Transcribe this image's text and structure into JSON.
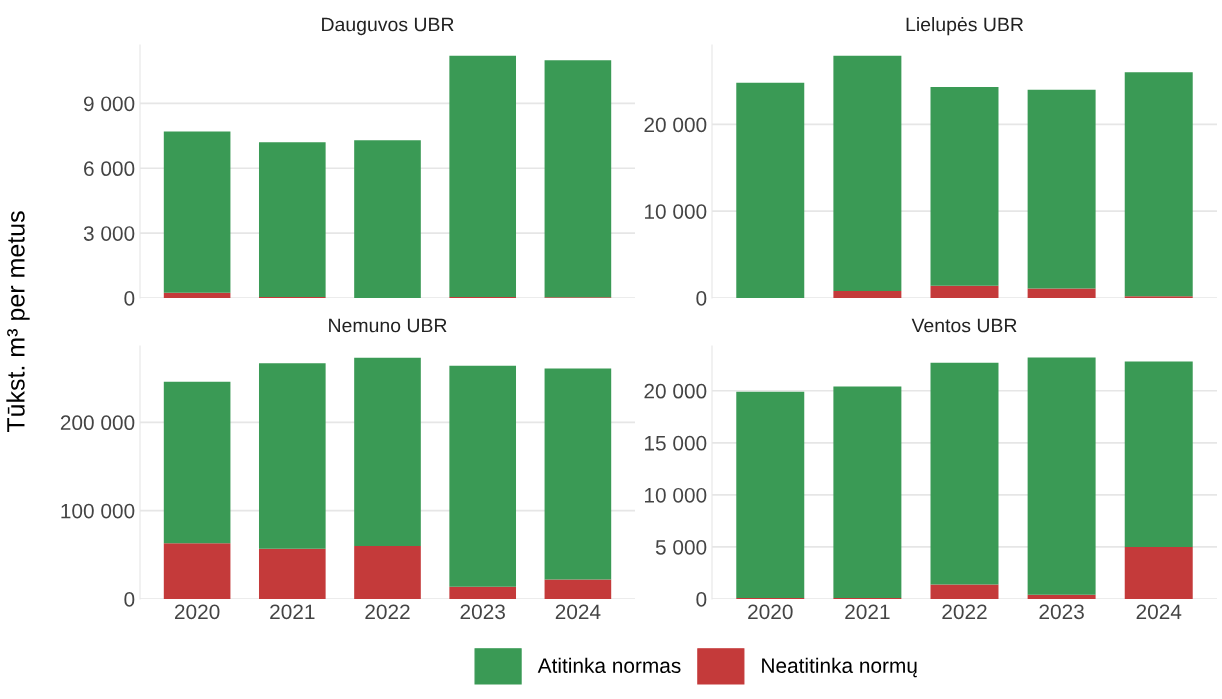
{
  "chart_data": [
    {
      "type": "bar",
      "title": "Dauguvos UBR",
      "ylabel": "Tūkst. m³ per metus",
      "stacked": true,
      "categories": [
        "2020",
        "2021",
        "2022",
        "2023",
        "2024"
      ],
      "series": [
        {
          "name": "Neatitinka normų",
          "color": "#c43a3a",
          "values": [
            240,
            50,
            0,
            50,
            40
          ]
        },
        {
          "name": "Atitinka normas",
          "color": "#3a9a55",
          "values": [
            7460,
            7150,
            7300,
            11150,
            10960
          ]
        }
      ],
      "ylim": [
        0,
        11700
      ],
      "yticks": [
        0,
        {
          "value": 3000,
          "label": "3 000"
        },
        {
          "value": 6000,
          "label": "6 000"
        },
        {
          "value": 9000,
          "label": "9 000"
        }
      ],
      "grid": "y",
      "tick_labels": "y",
      "legend": "bottom"
    },
    {
      "type": "bar",
      "title": "Lielupės UBR",
      "stacked": true,
      "categories": [
        "2020",
        "2021",
        "2022",
        "2023",
        "2024"
      ],
      "series": [
        {
          "name": "Neatitinka normų",
          "color": "#c43a3a",
          "values": [
            0,
            800,
            1400,
            1100,
            200
          ]
        },
        {
          "name": "Atitinka normas",
          "color": "#3a9a55",
          "values": [
            24800,
            27100,
            22900,
            22900,
            25800
          ]
        }
      ],
      "ylim": [
        0,
        29150
      ],
      "yticks": [
        0,
        {
          "value": 10000,
          "label": "10 000"
        },
        {
          "value": 20000,
          "label": "20 000"
        }
      ],
      "grid": "y",
      "tick_labels": "y",
      "legend": "bottom"
    },
    {
      "type": "bar",
      "title": "Nemuno UBR",
      "stacked": true,
      "categories": [
        "2020",
        "2021",
        "2022",
        "2023",
        "2024"
      ],
      "series": [
        {
          "name": "Neatitinka normų",
          "color": "#c43a3a",
          "values": [
            63000,
            57000,
            60000,
            14000,
            22000
          ]
        },
        {
          "name": "Atitinka normas",
          "color": "#3a9a55",
          "values": [
            183000,
            210000,
            213000,
            250000,
            239000
          ]
        }
      ],
      "ylim": [
        0,
        286400
      ],
      "yticks": [
        0,
        {
          "value": 100000,
          "label": "100 000"
        },
        {
          "value": 200000,
          "label": "200 000"
        }
      ],
      "grid": "y",
      "legend": "bottom"
    },
    {
      "type": "bar",
      "title": "Ventos UBR",
      "stacked": true,
      "categories": [
        "2020",
        "2021",
        "2022",
        "2023",
        "2024"
      ],
      "series": [
        {
          "name": "Neatitinka normų",
          "color": "#c43a3a",
          "values": [
            100,
            100,
            1400,
            400,
            5000
          ]
        },
        {
          "name": "Atitinka normas",
          "color": "#3a9a55",
          "values": [
            19800,
            20300,
            21300,
            22800,
            17800
          ]
        }
      ],
      "ylim": [
        0,
        24300
      ],
      "yticks": [
        0,
        {
          "value": 5000,
          "label": "5 000"
        },
        {
          "value": 10000,
          "label": "10 000"
        },
        {
          "value": 15000,
          "label": "15 000"
        },
        {
          "value": 20000,
          "label": "20 000"
        }
      ],
      "grid": "y",
      "legend": "bottom"
    }
  ]
}
